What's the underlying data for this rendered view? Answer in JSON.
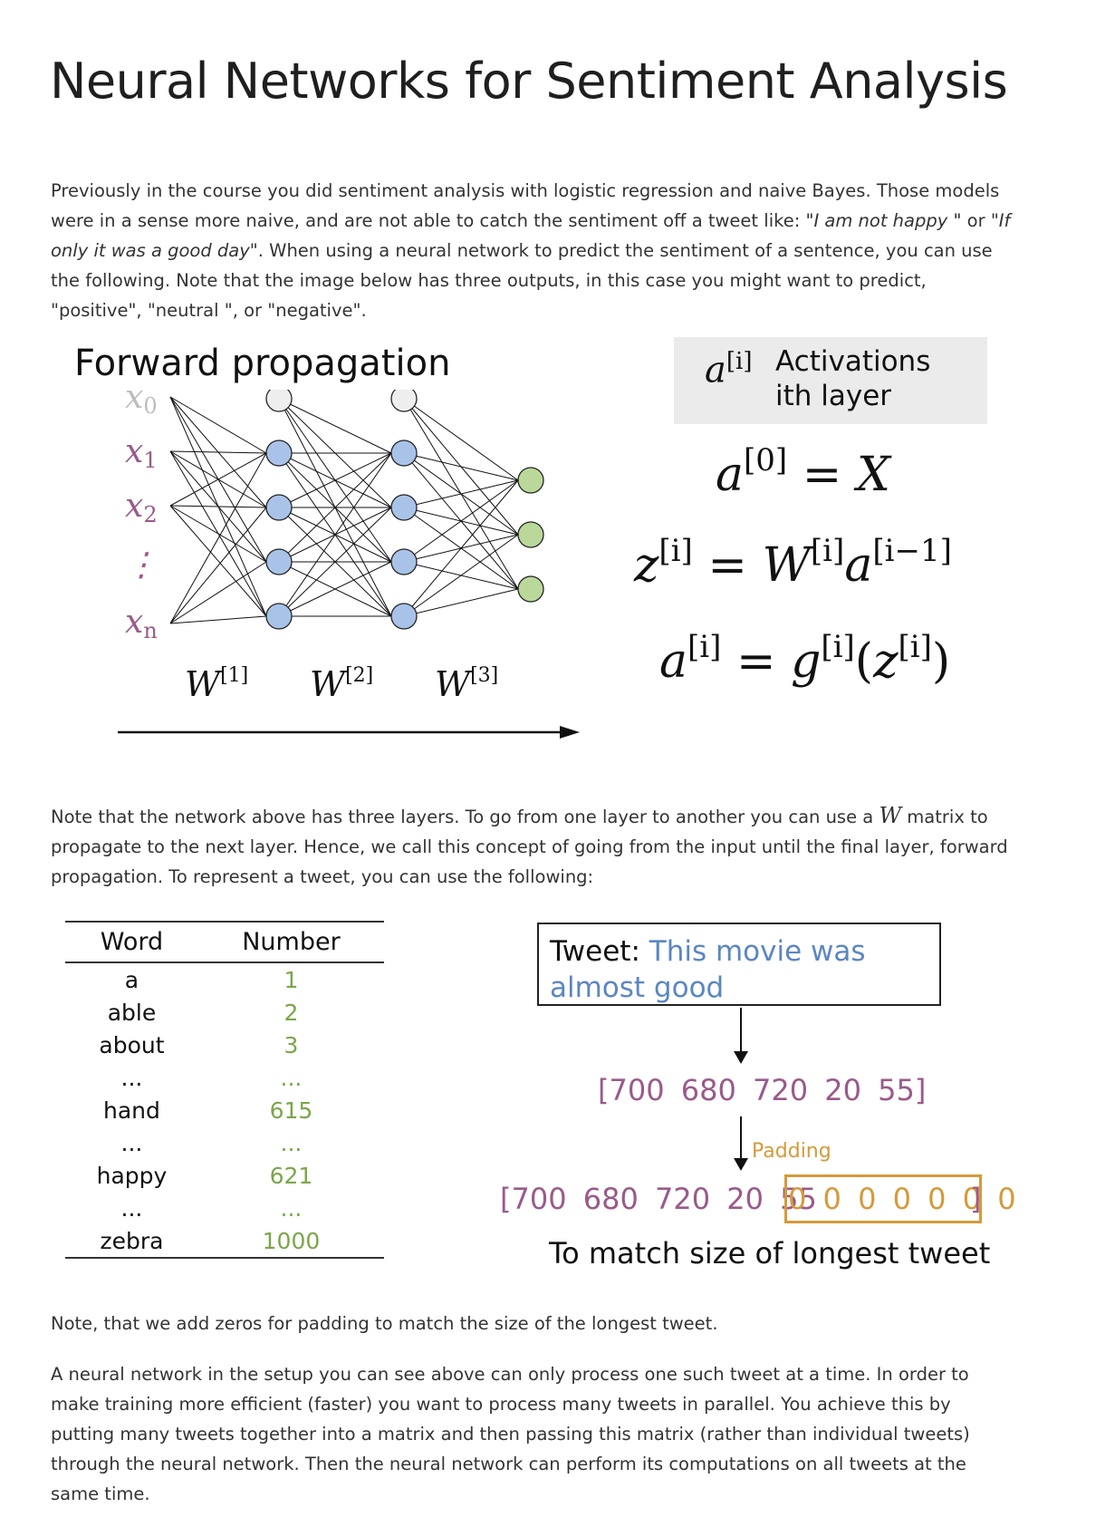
{
  "title": "Neural Networks for Sentiment Analysis",
  "intro": {
    "text_a": "Previously in the course you did sentiment analysis with logistic regression and naive Bayes. Those models were in a sense more naive, and are not able to catch the sentiment off a tweet like: ",
    "quote1": "\"I am not happy \"",
    "text_or": " or ",
    "quote2": "\"If only it was a good day\"",
    "text_b": ". When using a neural network to predict the sentiment of a sentence, you can use the following. Note that the image below has three outputs, in this case you might want to predict, \"positive\", \"neutral \", or \"negative\"."
  },
  "diagram": {
    "title": "Forward propagation",
    "input_labels": [
      "x",
      "x",
      "x",
      "⋮",
      "x"
    ],
    "input_subscripts": [
      "0",
      "1",
      "2",
      "",
      "n"
    ],
    "weights": [
      {
        "symbol": "W",
        "sup": "[1]"
      },
      {
        "symbol": "W",
        "sup": "[2]"
      },
      {
        "symbol": "W",
        "sup": "[3]"
      }
    ],
    "legend_symbol": "a",
    "legend_sup": "[i]",
    "legend_text": "Activations ith layer",
    "equations": {
      "eq1": {
        "lhs": "a",
        "lhs_sup": "[0]",
        "rhs": "X"
      },
      "eq2": {
        "lhs": "z",
        "lhs_sup": "[i]",
        "w": "W",
        "w_sup": "[i]",
        "a": "a",
        "a_sup": "[i−1]"
      },
      "eq3": {
        "lhs": "a",
        "lhs_sup": "[i]",
        "g": "g",
        "g_sup": "[i]",
        "z": "z",
        "z_sup": "[i]"
      }
    }
  },
  "middle": {
    "text_a": "Note that the network above has three layers. To go from one layer to another you can use a ",
    "w": "W",
    "text_b": " matrix to propagate to the next layer. Hence, we call this concept of going from the input until the final layer, forward propagation. To represent a tweet, you can use the following:"
  },
  "table": {
    "headers": [
      "Word",
      "Number"
    ],
    "rows": [
      [
        "a",
        "1"
      ],
      [
        "able",
        "2"
      ],
      [
        "about",
        "3"
      ],
      [
        "...",
        "..."
      ],
      [
        "hand",
        "615"
      ],
      [
        "...",
        "..."
      ],
      [
        "happy",
        "621"
      ],
      [
        "...",
        "..."
      ],
      [
        "zebra",
        "1000"
      ]
    ]
  },
  "tweet": {
    "label": "Tweet:",
    "text": "This movie was almost good",
    "vector": "[700  680  720  20  55]",
    "padding_label": "Padding",
    "padded_vector": "[700  680  720  20  55",
    "zeros": "0 0 0 0 0 0 0",
    "close": "]",
    "caption": "To match size of longest tweet"
  },
  "note": "Note, that we add zeros for padding to match the size of the longest tweet.",
  "closing": " A neural network in the setup you can see above can only process one such tweet at a time. In order to make training more efficient (faster) you want to process many tweets in parallel. You achieve this by putting many tweets together into a matrix and then passing this matrix (rather than individual tweets) through the neural network. Then the neural network can perform its computations on all tweets at the same time.",
  "colors": {
    "input_label": "#9a5a8a",
    "bias_node": "#eeeeee",
    "hidden_node": "#a9c3e8",
    "output_node": "#b9d89a",
    "table_number": "#7aa64a",
    "tweet_text": "#5b86c3",
    "vector": "#9a5a8a",
    "padding": "#d59a3a"
  }
}
